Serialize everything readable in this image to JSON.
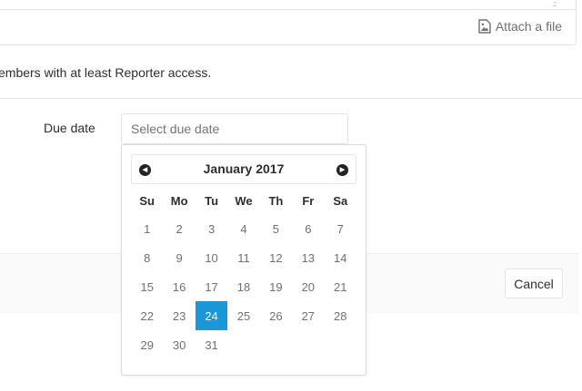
{
  "editor": {
    "attach_label": "Attach a file",
    "attach_icon": "image-file-icon"
  },
  "help_text": "embers with at least Reporter access.",
  "due_date": {
    "label": "Due date",
    "placeholder": "Select due date"
  },
  "footer": {
    "cancel_label": "Cancel"
  },
  "calendar": {
    "title": "January 2017",
    "prev_icon": "chevron-left-circle-icon",
    "next_icon": "chevron-right-circle-icon",
    "weekdays": [
      "Su",
      "Mo",
      "Tu",
      "We",
      "Th",
      "Fr",
      "Sa"
    ],
    "weeks": [
      [
        "1",
        "2",
        "3",
        "4",
        "5",
        "6",
        "7"
      ],
      [
        "8",
        "9",
        "10",
        "11",
        "12",
        "13",
        "14"
      ],
      [
        "15",
        "16",
        "17",
        "18",
        "19",
        "20",
        "21"
      ],
      [
        "22",
        "23",
        "24",
        "25",
        "26",
        "27",
        "28"
      ],
      [
        "29",
        "30",
        "31",
        "",
        "",
        "",
        ""
      ]
    ],
    "selected": "24",
    "selected_color": "#1b96d6"
  }
}
